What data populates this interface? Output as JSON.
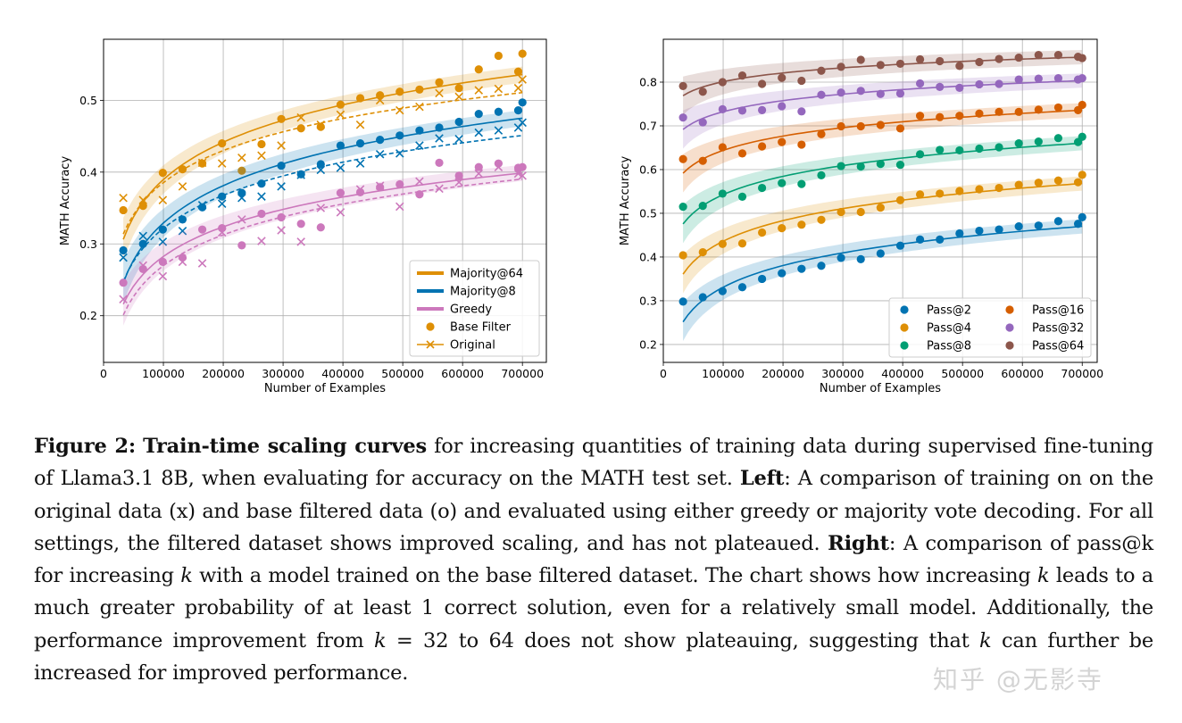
{
  "chart_data": [
    {
      "type": "scatter",
      "title": "",
      "xlabel": "Number of Examples",
      "ylabel": "MATH Accuracy",
      "xlim": [
        0,
        740000
      ],
      "ylim": [
        0.135,
        0.585
      ],
      "xticks": [
        0,
        100000,
        200000,
        300000,
        400000,
        500000,
        600000,
        700000
      ],
      "yticks": [
        0.2,
        0.3,
        0.4,
        0.5
      ],
      "x": [
        33000,
        66000,
        99000,
        132000,
        165000,
        198000,
        231000,
        264000,
        297000,
        330000,
        363000,
        396000,
        429000,
        462000,
        495000,
        528000,
        561000,
        594000,
        627000,
        660000,
        693000,
        700000
      ],
      "series": [
        {
          "name": "Majority@64",
          "color": "#DE8F05",
          "filtered": [
            0.347,
            0.353,
            0.399,
            0.404,
            0.412,
            0.44,
            0.402,
            0.439,
            0.474,
            0.461,
            0.463,
            0.494,
            0.503,
            0.507,
            0.512,
            0.515,
            0.525,
            0.517,
            0.543,
            0.562,
            0.54,
            0.565
          ],
          "original": [
            0.364,
            0.361,
            0.361,
            0.38,
            0.413,
            0.412,
            0.42,
            0.423,
            0.437,
            0.476,
            0.466,
            0.48,
            0.466,
            0.5,
            0.486,
            0.491,
            0.51,
            0.505,
            0.514,
            0.516,
            0.517,
            0.529
          ]
        },
        {
          "name": "Majority@8",
          "color": "#0173B2",
          "filtered": [
            0.291,
            0.3,
            0.32,
            0.334,
            0.351,
            0.366,
            0.371,
            0.384,
            0.409,
            0.397,
            0.411,
            0.437,
            0.44,
            0.445,
            0.451,
            0.458,
            0.462,
            0.47,
            0.481,
            0.484,
            0.486,
            0.497
          ],
          "original": [
            0.281,
            0.311,
            0.303,
            0.318,
            0.354,
            0.356,
            0.364,
            0.366,
            0.38,
            0.396,
            0.403,
            0.406,
            0.412,
            0.425,
            0.426,
            0.437,
            0.447,
            0.446,
            0.455,
            0.458,
            0.462,
            0.469
          ]
        },
        {
          "name": "Greedy",
          "color": "#CC78BC",
          "filtered": [
            0.246,
            0.265,
            0.275,
            0.281,
            0.32,
            0.322,
            0.298,
            0.342,
            0.337,
            0.328,
            0.323,
            0.371,
            0.372,
            0.379,
            0.383,
            0.369,
            0.413,
            0.395,
            0.407,
            0.412,
            0.406,
            0.407
          ],
          "original": [
            0.223,
            0.27,
            0.255,
            0.275,
            0.273,
            0.316,
            0.334,
            0.304,
            0.319,
            0.303,
            0.35,
            0.344,
            0.376,
            0.381,
            0.352,
            0.387,
            0.377,
            0.386,
            0.398,
            0.407,
            0.398,
            0.395
          ]
        }
      ],
      "legend": {
        "position": "lower-right",
        "entries": [
          {
            "label": "Majority@64",
            "color": "#DE8F05",
            "kind": "line"
          },
          {
            "label": "Majority@8",
            "color": "#0173B2",
            "kind": "line"
          },
          {
            "label": "Greedy",
            "color": "#CC78BC",
            "kind": "line"
          },
          {
            "label": "Base Filter",
            "color": "#DE8F05",
            "kind": "dot"
          },
          {
            "label": "Original",
            "color": "#DE8F05",
            "kind": "cross"
          }
        ]
      }
    },
    {
      "type": "scatter",
      "title": "",
      "xlabel": "Number of Examples",
      "ylabel": "MATH Accuracy",
      "xlim": [
        0,
        725000
      ],
      "ylim": [
        0.159,
        0.898
      ],
      "xticks": [
        0,
        100000,
        200000,
        300000,
        400000,
        500000,
        600000,
        700000
      ],
      "yticks": [
        0.2,
        0.3,
        0.4,
        0.5,
        0.6,
        0.7,
        0.8
      ],
      "x": [
        33000,
        66000,
        99000,
        132000,
        165000,
        198000,
        231000,
        264000,
        297000,
        330000,
        363000,
        396000,
        429000,
        462000,
        495000,
        528000,
        561000,
        594000,
        627000,
        660000,
        693000,
        700000
      ],
      "series": [
        {
          "name": "Pass@2",
          "color": "#0173B2",
          "values": [
            0.298,
            0.308,
            0.322,
            0.331,
            0.35,
            0.363,
            0.373,
            0.38,
            0.398,
            0.395,
            0.408,
            0.426,
            0.44,
            0.44,
            0.454,
            0.46,
            0.463,
            0.47,
            0.472,
            0.482,
            0.476,
            0.491
          ]
        },
        {
          "name": "Pass@4",
          "color": "#DE8F05",
          "values": [
            0.404,
            0.411,
            0.43,
            0.431,
            0.456,
            0.466,
            0.474,
            0.485,
            0.503,
            0.503,
            0.513,
            0.53,
            0.543,
            0.545,
            0.551,
            0.555,
            0.558,
            0.565,
            0.57,
            0.575,
            0.571,
            0.588
          ]
        },
        {
          "name": "Pass@8",
          "color": "#029E73",
          "values": [
            0.515,
            0.517,
            0.545,
            0.538,
            0.558,
            0.569,
            0.567,
            0.587,
            0.608,
            0.607,
            0.613,
            0.611,
            0.635,
            0.645,
            0.644,
            0.648,
            0.651,
            0.66,
            0.664,
            0.672,
            0.663,
            0.675
          ]
        },
        {
          "name": "Pass@16",
          "color": "#D55E00",
          "values": [
            0.624,
            0.62,
            0.651,
            0.637,
            0.653,
            0.663,
            0.657,
            0.681,
            0.699,
            0.699,
            0.702,
            0.694,
            0.723,
            0.72,
            0.723,
            0.728,
            0.732,
            0.732,
            0.737,
            0.742,
            0.736,
            0.748
          ]
        },
        {
          "name": "Pass@32",
          "color": "#9467BD",
          "values": [
            0.719,
            0.708,
            0.738,
            0.735,
            0.736,
            0.745,
            0.733,
            0.771,
            0.776,
            0.78,
            0.773,
            0.774,
            0.797,
            0.789,
            0.787,
            0.795,
            0.796,
            0.806,
            0.808,
            0.809,
            0.806,
            0.809
          ]
        },
        {
          "name": "Pass@64",
          "color": "#8C564B",
          "values": [
            0.791,
            0.778,
            0.8,
            0.815,
            0.796,
            0.81,
            0.803,
            0.826,
            0.835,
            0.851,
            0.839,
            0.842,
            0.852,
            0.848,
            0.837,
            0.846,
            0.853,
            0.856,
            0.862,
            0.862,
            0.858,
            0.855
          ]
        }
      ],
      "legend": {
        "position": "lower-right",
        "entries": [
          {
            "label": "Pass@2",
            "color": "#0173B2"
          },
          {
            "label": "Pass@4",
            "color": "#DE8F05"
          },
          {
            "label": "Pass@8",
            "color": "#029E73"
          },
          {
            "label": "Pass@16",
            "color": "#D55E00"
          },
          {
            "label": "Pass@32",
            "color": "#9467BD"
          },
          {
            "label": "Pass@64",
            "color": "#8C564B"
          }
        ]
      }
    }
  ],
  "caption": {
    "fig_label": "Figure 2:",
    "bold_title": "Train-time scaling curves",
    "s1": " for increasing quantities of training data during supervised fine-tuning of Llama3.1 8B, when evaluating for accuracy on the MATH test set. ",
    "left_label": "Left",
    "s2": ": A comparison of training on on the original data (x) and base filtered data (o) and evaluated using either greedy or majority vote decoding. For all settings, the filtered dataset shows improved scaling, and has not plateaued. ",
    "right_label": "Right",
    "s3": ": A comparison of pass@k for increasing ",
    "k1": "k",
    "s4": " with a model trained on the base filtered dataset. The chart shows how increasing ",
    "k2": "k",
    "s5": " leads to a much greater probability of at least 1 correct solution, even for a relatively small model. Additionally, the performance improvement from ",
    "k3": "k",
    "s6": " = 32 to 64 does not show plateauing, suggesting that ",
    "k4": "k",
    "s7": " can further be increased for improved performance."
  },
  "watermark": "知乎 @无影寺"
}
